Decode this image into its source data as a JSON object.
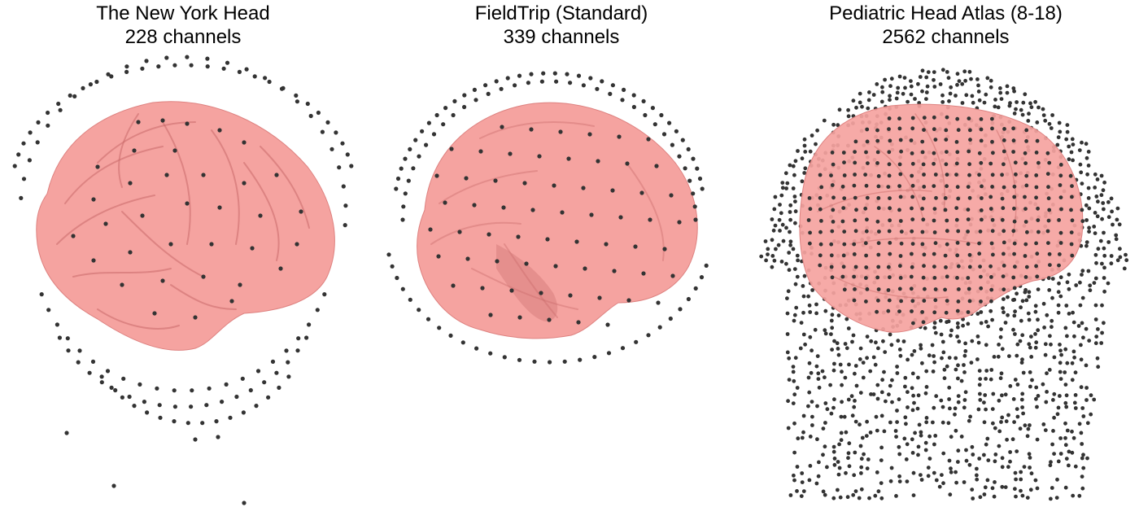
{
  "colors": {
    "brain": "#f5a3a0",
    "brain_shade": "#de8280",
    "brain_dark": "#c96a69",
    "sensor": "#333333"
  },
  "panels": [
    {
      "title": "The New York Head",
      "subtitle": "228 channels",
      "sensor_count": 228
    },
    {
      "title": "FieldTrip (Standard)",
      "subtitle": "339 channels",
      "sensor_count": 339
    },
    {
      "title": "Pediatric Head Atlas (8-18)",
      "subtitle": "2562 channels",
      "sensor_count": 2562
    }
  ]
}
